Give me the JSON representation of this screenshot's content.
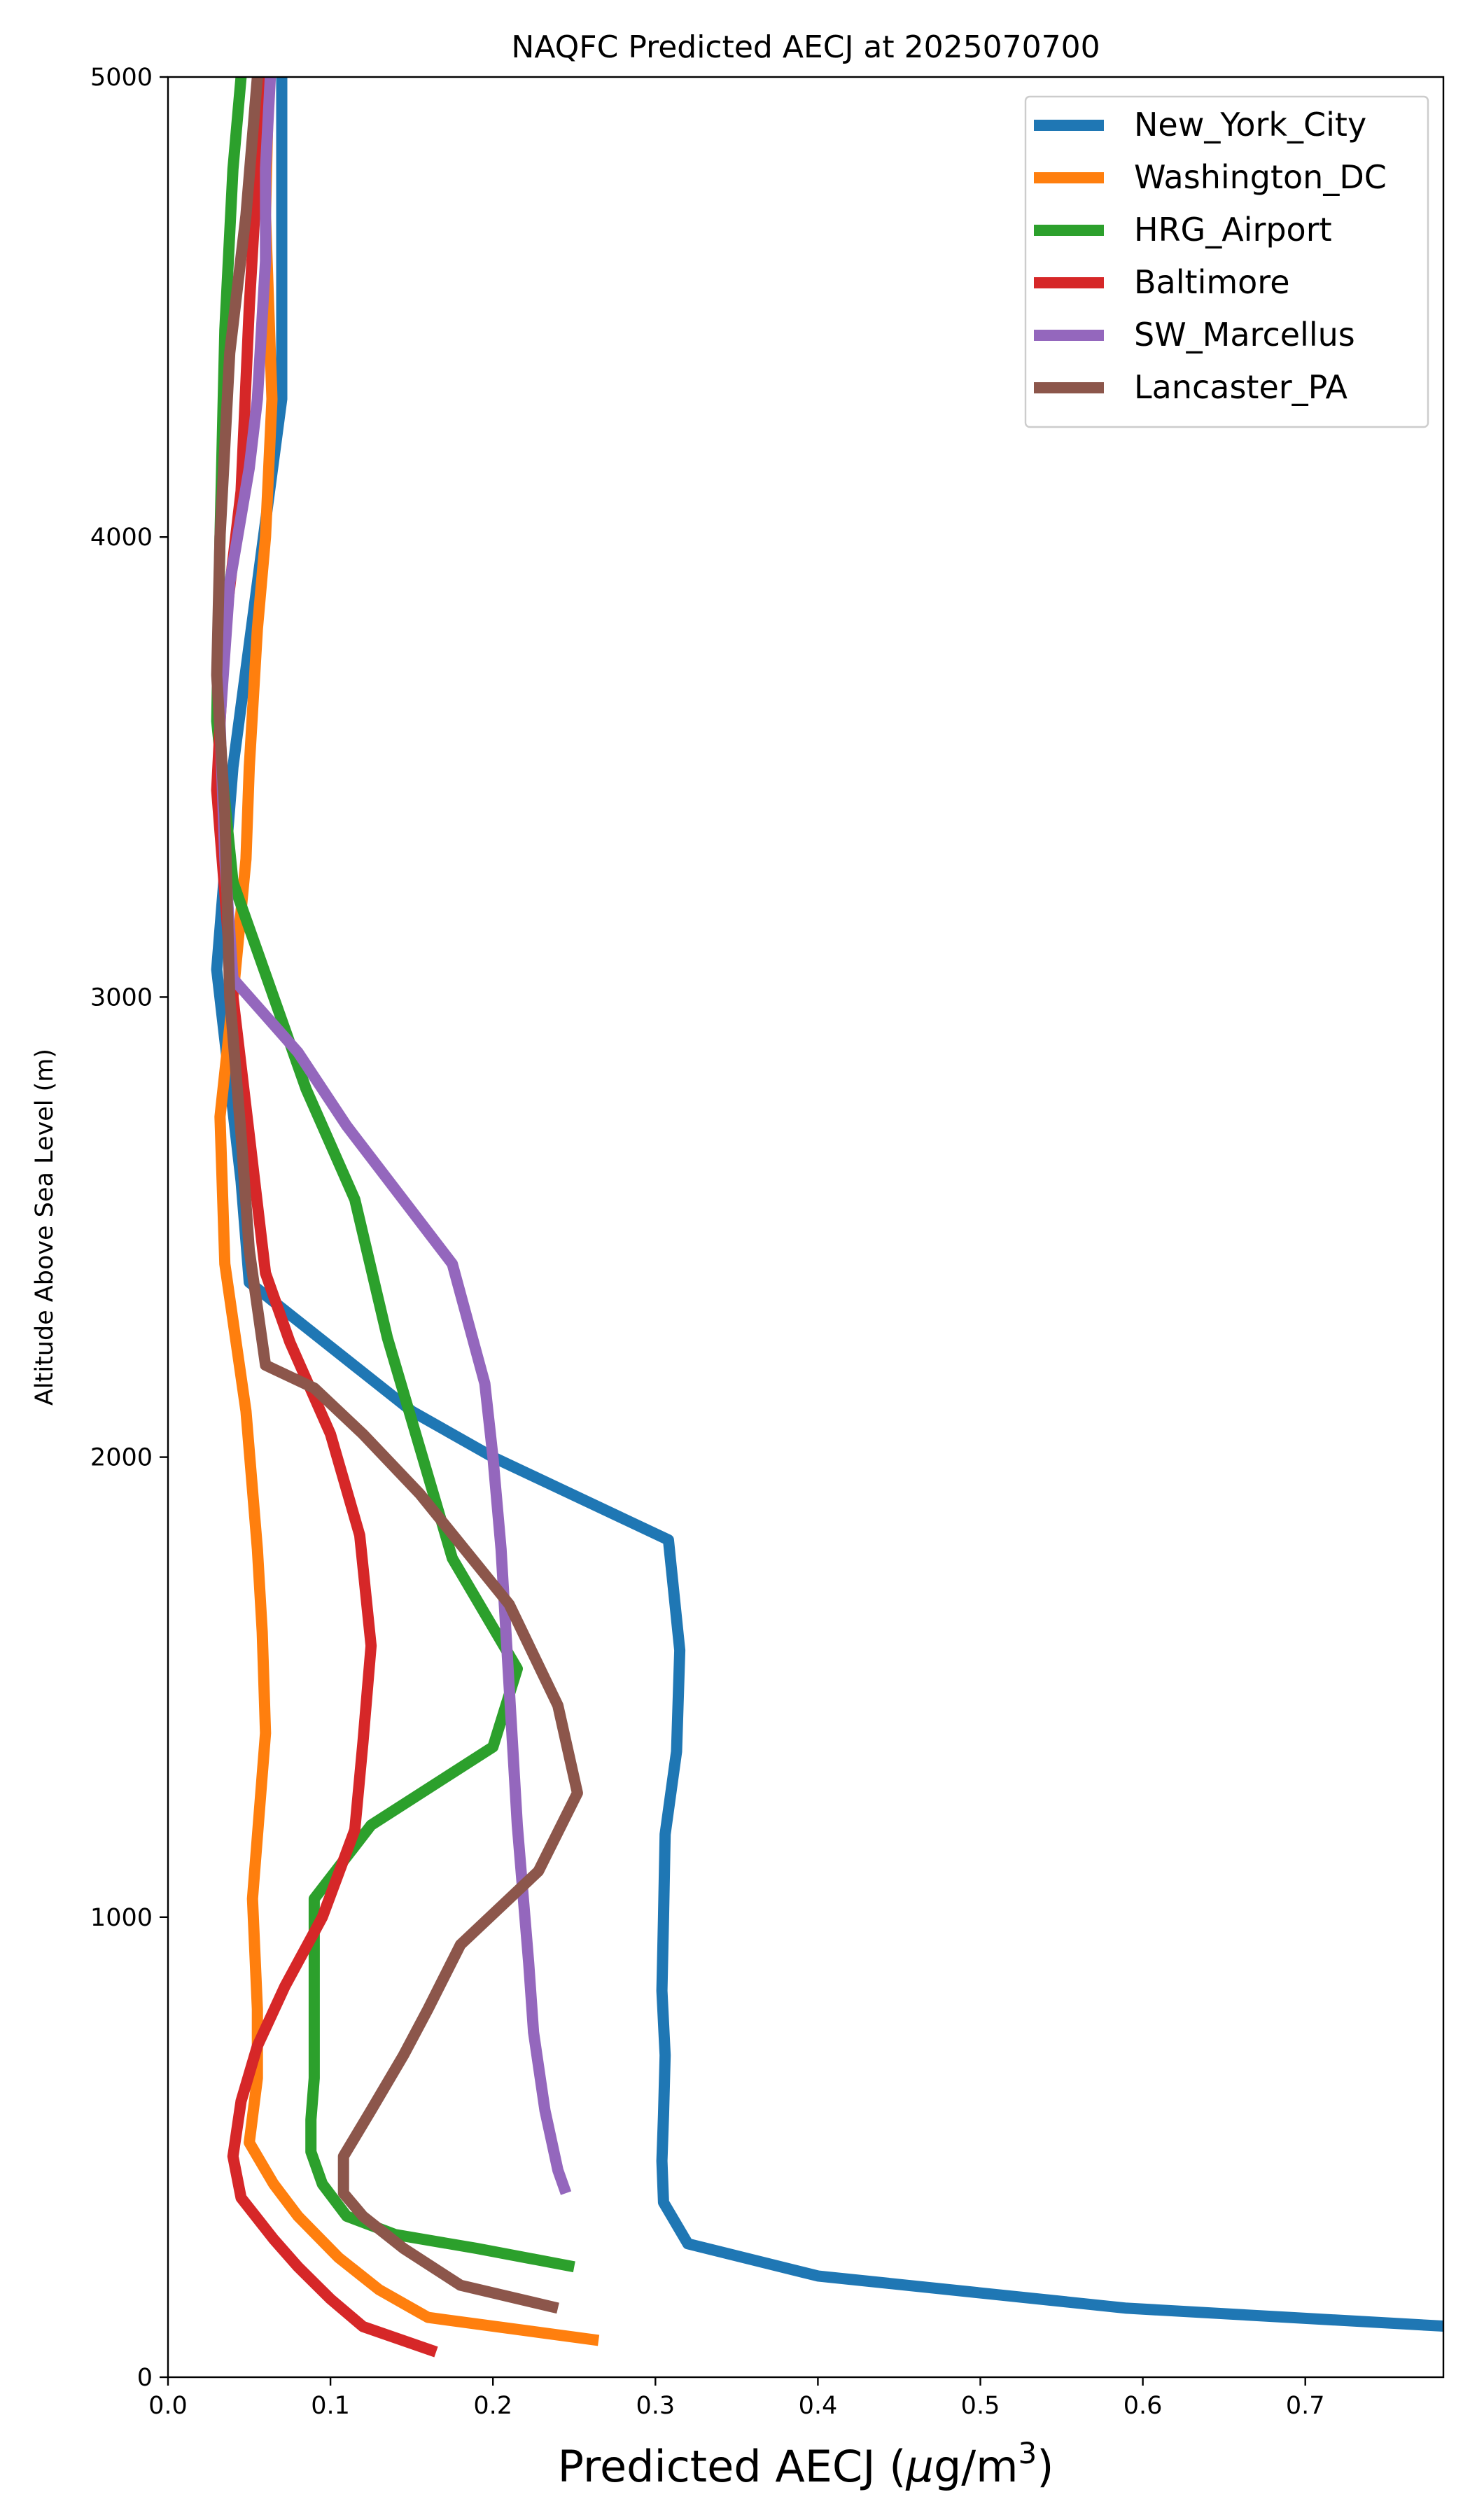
{
  "chart_data": {
    "type": "line",
    "title": "NAQFC Predicted AECJ at 2025070700",
    "xlabel_main": "Predicted AECJ (",
    "xlabel_mu": "μ",
    "xlabel_unit": "g/m",
    "xlabel_sup": "3",
    "xlabel_close": ")",
    "ylabel": "Altitude Above Sea Level (m)",
    "xlim": [
      0,
      0.785
    ],
    "ylim": [
      0,
      5000
    ],
    "xticks": [
      0.0,
      0.1,
      0.2,
      0.3,
      0.4,
      0.5,
      0.6,
      0.7
    ],
    "xtick_labels": [
      "0.0",
      "0.1",
      "0.2",
      "0.3",
      "0.4",
      "0.5",
      "0.6",
      "0.7"
    ],
    "yticks": [
      0,
      1000,
      2000,
      3000,
      4000,
      5000
    ],
    "ytick_labels": [
      "0",
      "1000",
      "2000",
      "3000",
      "4000",
      "5000"
    ],
    "grid": false,
    "legend_position": "top-right",
    "series": [
      {
        "name": "New_York_City",
        "color": "#1f77b4",
        "points": [
          [
            0.79,
            110
          ],
          [
            0.59,
            150
          ],
          [
            0.4,
            220
          ],
          [
            0.32,
            290
          ],
          [
            0.305,
            380
          ],
          [
            0.304,
            470
          ],
          [
            0.305,
            570
          ],
          [
            0.306,
            700
          ],
          [
            0.304,
            840
          ],
          [
            0.305,
            1000
          ],
          [
            0.306,
            1180
          ],
          [
            0.313,
            1360
          ],
          [
            0.315,
            1580
          ],
          [
            0.308,
            1820
          ],
          [
            0.2,
            2000
          ],
          [
            0.15,
            2100
          ],
          [
            0.05,
            2380
          ],
          [
            0.045,
            2600
          ],
          [
            0.03,
            3060
          ],
          [
            0.04,
            3500
          ],
          [
            0.055,
            3900
          ],
          [
            0.07,
            4300
          ],
          [
            0.07,
            4600
          ],
          [
            0.07,
            5000
          ]
        ]
      },
      {
        "name": "Washington_DC",
        "color": "#ff7f0e",
        "points": [
          [
            0.265,
            80
          ],
          [
            0.16,
            130
          ],
          [
            0.13,
            190
          ],
          [
            0.105,
            260
          ],
          [
            0.08,
            350
          ],
          [
            0.065,
            420
          ],
          [
            0.05,
            510
          ],
          [
            0.055,
            650
          ],
          [
            0.055,
            800
          ],
          [
            0.052,
            1040
          ],
          [
            0.06,
            1400
          ],
          [
            0.058,
            1620
          ],
          [
            0.055,
            1800
          ],
          [
            0.048,
            2100
          ],
          [
            0.035,
            2420
          ],
          [
            0.032,
            2740
          ],
          [
            0.04,
            3000
          ],
          [
            0.048,
            3300
          ],
          [
            0.05,
            3500
          ],
          [
            0.055,
            3800
          ],
          [
            0.06,
            4000
          ],
          [
            0.064,
            4300
          ],
          [
            0.06,
            4700
          ],
          [
            0.062,
            5000
          ]
        ]
      },
      {
        "name": "HRG_Airport",
        "color": "#2ca02c",
        "points": [
          [
            0.25,
            240
          ],
          [
            0.19,
            280
          ],
          [
            0.14,
            310
          ],
          [
            0.11,
            350
          ],
          [
            0.095,
            420
          ],
          [
            0.088,
            490
          ],
          [
            0.088,
            560
          ],
          [
            0.09,
            650
          ],
          [
            0.09,
            900
          ],
          [
            0.09,
            1040
          ],
          [
            0.125,
            1200
          ],
          [
            0.2,
            1370
          ],
          [
            0.215,
            1540
          ],
          [
            0.175,
            1780
          ],
          [
            0.155,
            2020
          ],
          [
            0.135,
            2260
          ],
          [
            0.115,
            2560
          ],
          [
            0.085,
            2800
          ],
          [
            0.06,
            3050
          ],
          [
            0.04,
            3250
          ],
          [
            0.03,
            3600
          ],
          [
            0.032,
            4000
          ],
          [
            0.035,
            4450
          ],
          [
            0.04,
            4800
          ],
          [
            0.045,
            5000
          ]
        ]
      },
      {
        "name": "Baltimore",
        "color": "#d62728",
        "points": [
          [
            0.165,
            55
          ],
          [
            0.12,
            110
          ],
          [
            0.1,
            170
          ],
          [
            0.08,
            240
          ],
          [
            0.065,
            300
          ],
          [
            0.045,
            390
          ],
          [
            0.04,
            480
          ],
          [
            0.045,
            600
          ],
          [
            0.055,
            720
          ],
          [
            0.072,
            850
          ],
          [
            0.095,
            1000
          ],
          [
            0.115,
            1190
          ],
          [
            0.12,
            1380
          ],
          [
            0.125,
            1590
          ],
          [
            0.118,
            1830
          ],
          [
            0.1,
            2050
          ],
          [
            0.075,
            2250
          ],
          [
            0.06,
            2400
          ],
          [
            0.05,
            2700
          ],
          [
            0.04,
            3000
          ],
          [
            0.03,
            3450
          ],
          [
            0.035,
            3800
          ],
          [
            0.045,
            4100
          ],
          [
            0.05,
            4500
          ],
          [
            0.055,
            4800
          ],
          [
            0.058,
            5000
          ]
        ]
      },
      {
        "name": "SW_Marcellus",
        "color": "#9467bd",
        "points": [
          [
            0.245,
            400
          ],
          [
            0.24,
            450
          ],
          [
            0.232,
            580
          ],
          [
            0.225,
            750
          ],
          [
            0.222,
            900
          ],
          [
            0.215,
            1200
          ],
          [
            0.21,
            1500
          ],
          [
            0.205,
            1800
          ],
          [
            0.2,
            2000
          ],
          [
            0.195,
            2160
          ],
          [
            0.175,
            2420
          ],
          [
            0.11,
            2720
          ],
          [
            0.08,
            2880
          ],
          [
            0.04,
            3040
          ],
          [
            0.035,
            3300
          ],
          [
            0.032,
            3600
          ],
          [
            0.038,
            3900
          ],
          [
            0.05,
            4150
          ],
          [
            0.055,
            4300
          ],
          [
            0.06,
            4600
          ],
          [
            0.06,
            4800
          ],
          [
            0.063,
            5000
          ]
        ]
      },
      {
        "name": "Lancaster_PA",
        "color": "#8c564b",
        "points": [
          [
            0.24,
            150
          ],
          [
            0.18,
            200
          ],
          [
            0.145,
            280
          ],
          [
            0.12,
            350
          ],
          [
            0.108,
            400
          ],
          [
            0.108,
            480
          ],
          [
            0.125,
            580
          ],
          [
            0.145,
            700
          ],
          [
            0.16,
            800
          ],
          [
            0.18,
            940
          ],
          [
            0.228,
            1100
          ],
          [
            0.252,
            1270
          ],
          [
            0.24,
            1460
          ],
          [
            0.21,
            1680
          ],
          [
            0.155,
            1920
          ],
          [
            0.12,
            2050
          ],
          [
            0.09,
            2150
          ],
          [
            0.06,
            2200
          ],
          [
            0.05,
            2450
          ],
          [
            0.045,
            2700
          ],
          [
            0.038,
            3000
          ],
          [
            0.035,
            3400
          ],
          [
            0.03,
            3700
          ],
          [
            0.032,
            4000
          ],
          [
            0.038,
            4400
          ],
          [
            0.048,
            4700
          ],
          [
            0.055,
            5000
          ]
        ]
      }
    ]
  }
}
